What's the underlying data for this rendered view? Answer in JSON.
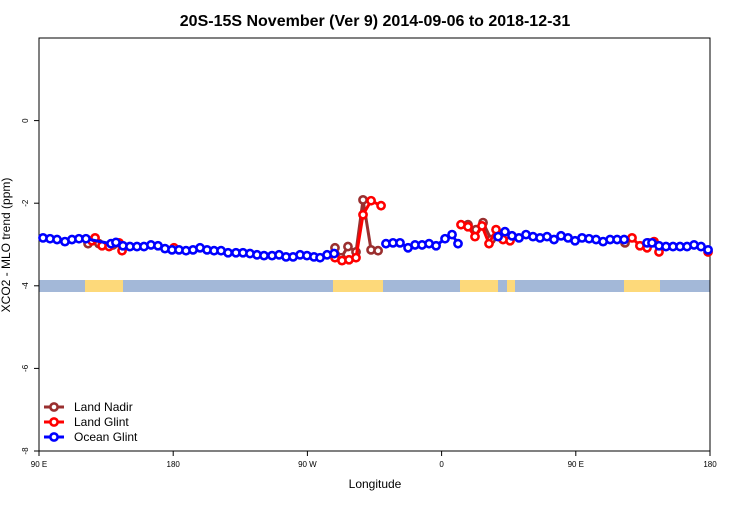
{
  "chart_data": {
    "type": "line",
    "title": "20S-15S November (Ver 9)   2014-09-06 to 2018-12-31",
    "x_label": "Longitude",
    "y_label": "XCO2 - MLO trend (ppm)",
    "xlim": [
      90,
      540
    ],
    "xticks": [
      {
        "value": 90,
        "label": "90 E"
      },
      {
        "value": 180,
        "label": "180"
      },
      {
        "value": 270,
        "label": "90 W"
      },
      {
        "value": 360,
        "label": "0"
      },
      {
        "value": 450,
        "label": "90 E"
      },
      {
        "value": 540,
        "label": "180"
      }
    ],
    "ylim": [
      -8,
      2
    ],
    "yticks": [
      0,
      -2,
      -4,
      -6,
      -8
    ],
    "legend": "bottom-left",
    "series": [
      {
        "name": "Land Nadir",
        "color": "#9a2f2f",
        "x": [
          122.9,
          130.2,
          139.6,
          null,
          288.5,
          292.6,
          297.2,
          302.6,
          307.3,
          312.7,
          317.4,
          null,
          377.7,
          383.1,
          387.8,
          393.2,
          null,
          483.0,
          null,
          498.5
        ],
        "values": [
          -2.98,
          -2.98,
          -3.01,
          null,
          -3.08,
          -3.32,
          -3.05,
          -3.18,
          -1.92,
          -3.13,
          -3.15,
          null,
          -2.52,
          -2.64,
          -2.47,
          -2.88,
          null,
          -2.96,
          null,
          -2.96
        ]
      },
      {
        "name": "Land Glint",
        "color": "#ff0000",
        "x": [
          125.5,
          127.6,
          132.3,
          137.0,
          143.7,
          145.7,
          null,
          180.5,
          null,
          288.5,
          293.2,
          297.9,
          302.6,
          307.3,
          312.7,
          319.4,
          null,
          373.0,
          377.7,
          382.4,
          387.1,
          391.8,
          396.5,
          401.2,
          405.9,
          null,
          487.7,
          493.0,
          497.8,
          502.5,
          505.8,
          null,
          538.7
        ],
        "values": [
          -2.91,
          -2.84,
          -3.03,
          -3.05,
          -2.96,
          -3.15,
          null,
          -3.08,
          null,
          -3.32,
          -3.39,
          -3.37,
          -3.32,
          -2.28,
          -1.94,
          -2.06,
          null,
          -2.52,
          -2.57,
          -2.81,
          -2.55,
          -2.98,
          -2.64,
          -2.88,
          -2.91,
          null,
          -2.84,
          -3.03,
          -3.08,
          -2.93,
          -3.18,
          null,
          -3.18
        ]
      },
      {
        "name": "Ocean Glint",
        "color": "#0000ff",
        "x": [
          92.7,
          97.4,
          102.1,
          107.4,
          112.1,
          116.8,
          121.5,
          138.3,
          141.6,
          146.3,
          151.0,
          155.7,
          160.4,
          165.1,
          169.8,
          174.5,
          179.2,
          183.9,
          188.6,
          193.3,
          198.0,
          202.7,
          207.4,
          212.1,
          216.8,
          222.1,
          226.8,
          231.5,
          236.2,
          240.9,
          246.3,
          251.0,
          255.7,
          260.4,
          265.1,
          269.7,
          274.4,
          278.5,
          283.2,
          287.9,
          null,
          322.7,
          327.4,
          332.1,
          337.5,
          342.2,
          346.9,
          351.6,
          356.3,
          362.3,
          367.0,
          371.0,
          null,
          397.9,
          402.5,
          407.2,
          411.9,
          416.6,
          421.3,
          426.0,
          430.7,
          435.4,
          440.1,
          444.8,
          449.5,
          454.2,
          458.9,
          463.6,
          468.3,
          473.0,
          477.7,
          482.4,
          null,
          497.8,
          501.1,
          505.8,
          510.5,
          515.2,
          519.9,
          524.6,
          529.3,
          534.0,
          538.7
        ],
        "values": [
          -2.84,
          -2.86,
          -2.88,
          -2.93,
          -2.88,
          -2.86,
          -2.86,
          -2.98,
          -2.95,
          -3.03,
          -3.05,
          -3.05,
          -3.05,
          -3.01,
          -3.03,
          -3.1,
          -3.13,
          -3.13,
          -3.15,
          -3.13,
          -3.08,
          -3.13,
          -3.15,
          -3.15,
          -3.2,
          -3.2,
          -3.2,
          -3.22,
          -3.25,
          -3.27,
          -3.27,
          -3.25,
          -3.3,
          -3.3,
          -3.25,
          -3.27,
          -3.3,
          -3.32,
          -3.25,
          -3.22,
          null,
          -2.98,
          -2.96,
          -2.96,
          -3.08,
          -3.01,
          -3.01,
          -2.98,
          -3.03,
          -2.86,
          -2.76,
          -2.98,
          null,
          -2.81,
          -2.69,
          -2.79,
          -2.84,
          -2.76,
          -2.81,
          -2.84,
          -2.81,
          -2.88,
          -2.79,
          -2.84,
          -2.91,
          -2.84,
          -2.86,
          -2.88,
          -2.93,
          -2.88,
          -2.88,
          -2.88,
          null,
          -2.96,
          -2.96,
          -3.03,
          -3.05,
          -3.05,
          -3.05,
          -3.05,
          -3.01,
          -3.05,
          -3.13
        ]
      }
    ]
  }
}
